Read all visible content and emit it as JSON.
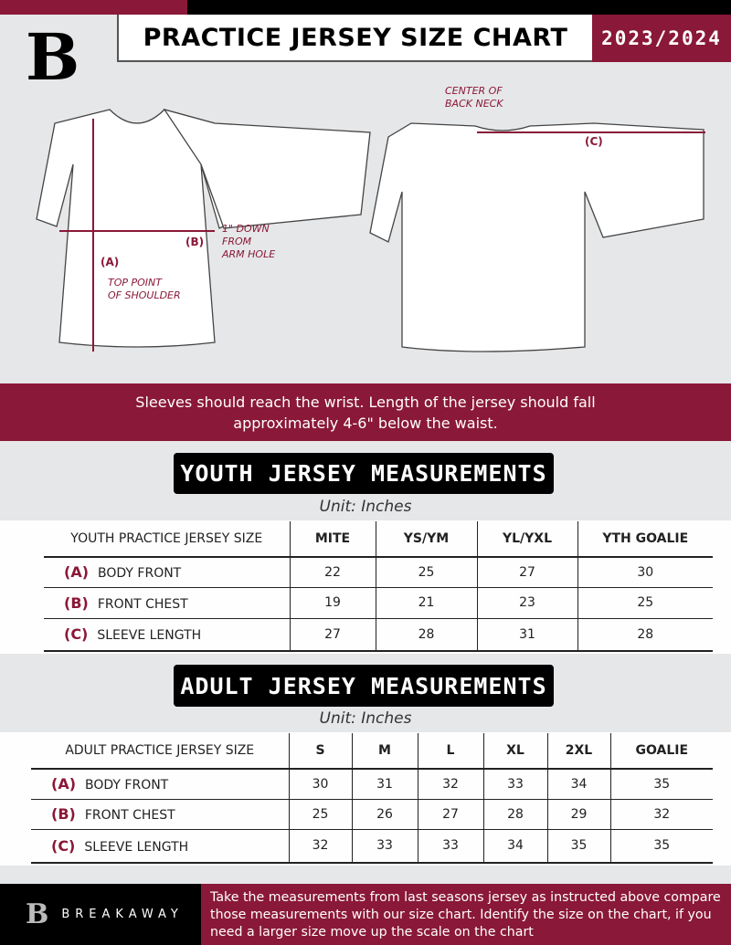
{
  "header": {
    "title": "PRACTICE JERSEY SIZE CHART",
    "season": "2023/2024",
    "logo_letter": "B"
  },
  "diagram": {
    "labels": {
      "a": "(A)",
      "b": "(B)",
      "c": "(C)",
      "top_point": "TOP POINT\nOF SHOULDER",
      "down": "1\" DOWN\nFROM\nARM HOLE",
      "center": "CENTER OF\nBACK NECK"
    }
  },
  "banner": {
    "line1": "Sleeves should reach the wrist. Length of the jersey should fall",
    "line2": "approximately 4-6\" below the waist."
  },
  "youth": {
    "title": "YOUTH JERSEY MEASUREMENTS",
    "unit": "Unit: Inches",
    "header": [
      "YOUTH PRACTICE JERSEY SIZE",
      "MITE",
      "YS/YM",
      "YL/YXL",
      "YTH GOALIE"
    ],
    "rows": [
      {
        "letter": "(A)",
        "label": "BODY FRONT",
        "values": [
          "22",
          "25",
          "27",
          "30"
        ]
      },
      {
        "letter": "(B)",
        "label": "FRONT CHEST",
        "values": [
          "19",
          "21",
          "23",
          "25"
        ]
      },
      {
        "letter": "(C)",
        "label": "SLEEVE LENGTH",
        "values": [
          "27",
          "28",
          "31",
          "28"
        ]
      }
    ]
  },
  "adult": {
    "title": "ADULT JERSEY MEASUREMENTS",
    "unit": "Unit: Inches",
    "header": [
      "ADULT PRACTICE JERSEY SIZE",
      "S",
      "M",
      "L",
      "XL",
      "2XL",
      "GOALIE"
    ],
    "rows": [
      {
        "letter": "(A)",
        "label": "BODY FRONT",
        "values": [
          "30",
          "31",
          "32",
          "33",
          "34",
          "35"
        ]
      },
      {
        "letter": "(B)",
        "label": "FRONT CHEST",
        "values": [
          "25",
          "26",
          "27",
          "28",
          "29",
          "32"
        ]
      },
      {
        "letter": "(C)",
        "label": "SLEEVE LENGTH",
        "values": [
          "32",
          "33",
          "33",
          "34",
          "35",
          "35"
        ]
      }
    ]
  },
  "footer": {
    "brand": "BREAKAWAY",
    "text": "Take the measurements from last seasons jersey as instructed above compare those measurements  with our size chart. Identify the size on the chart, if you need a larger size move up the scale on the chart"
  },
  "colors": {
    "accent": "#8a1838",
    "background": "#e6e7e8"
  }
}
